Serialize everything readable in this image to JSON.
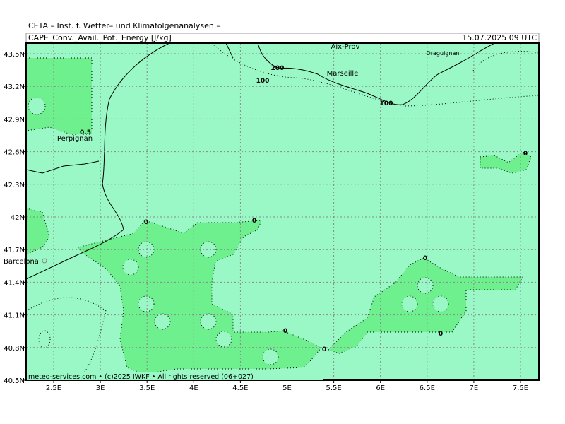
{
  "header": {
    "model": "CETA  –  Inst. f. Wetter–  und Klimafolgenanalysen  –",
    "field": "CAPE_Conv._Avail._Pot._Energy [J/kg]",
    "valid": "15.07.2025 09 UTC"
  },
  "axes": {
    "lat_labels": [
      "43.5N",
      "43.2N",
      "42.9N",
      "42.6N",
      "42.3N",
      "42N",
      "41.7N",
      "41.4N",
      "41.1N",
      "40.8N",
      "40.5N"
    ],
    "lon_labels": [
      "2.5E",
      "3E",
      "3.5E",
      "4E",
      "4.5E",
      "5E",
      "5.5E",
      "6E",
      "6.5E",
      "7E",
      "7.5E"
    ]
  },
  "places": [
    "Aix-Prov",
    "Draguignan",
    "Marseille",
    "Perpignan",
    "Barcelona"
  ],
  "contour_labels": [
    "200",
    "100",
    "100",
    "0.5",
    "0",
    "0",
    "0",
    "0",
    "0",
    "0",
    "0"
  ],
  "footer": "meteo-services.com • (c)2025 IWKF • All rights reserved (06+027)"
}
